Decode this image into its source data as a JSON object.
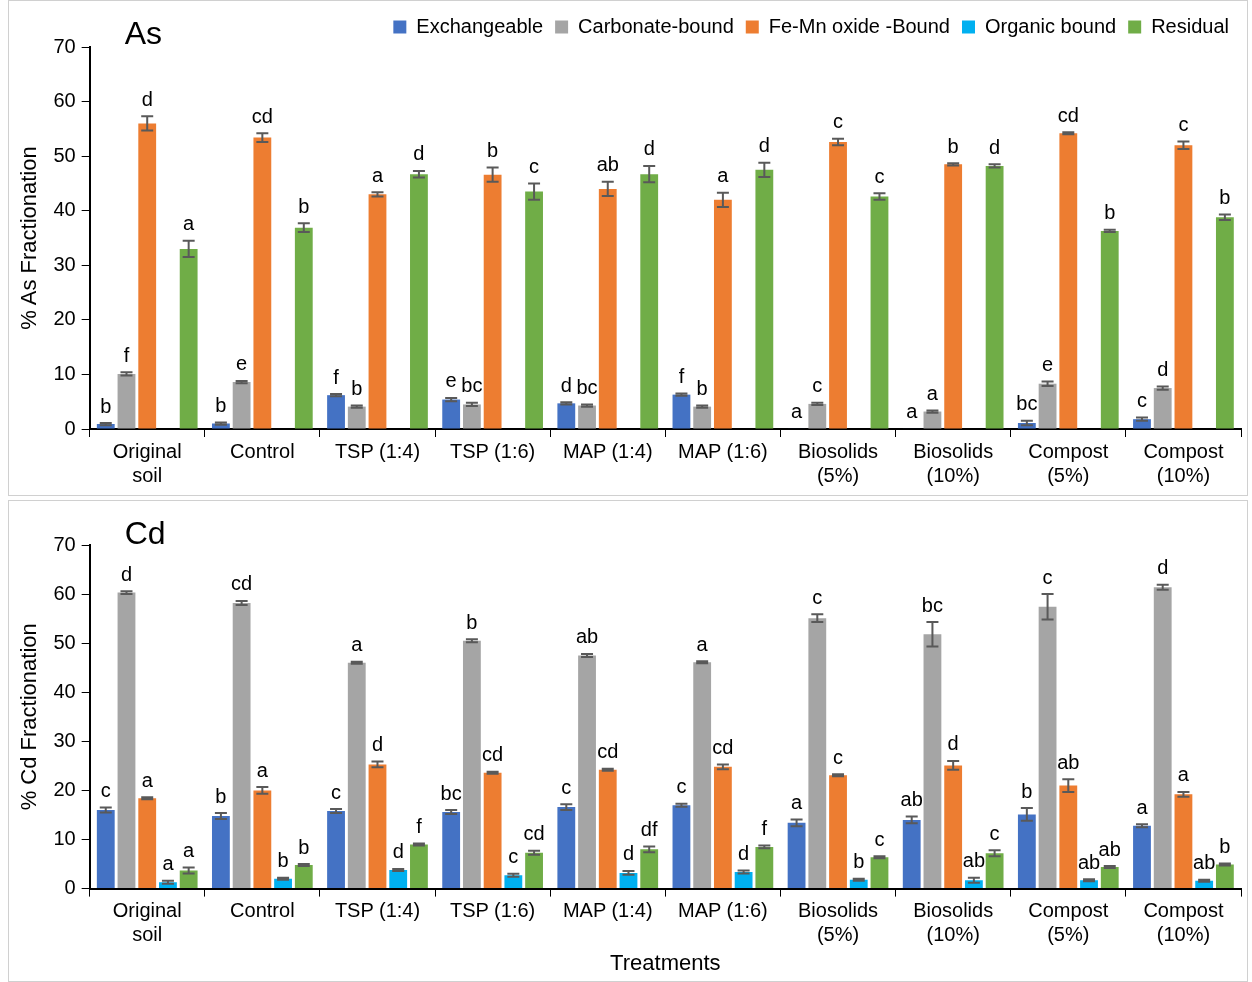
{
  "chart_data": [
    {
      "type": "bar",
      "title": "As",
      "ylabel": "% As Fractionation",
      "legend": "top",
      "ylim": [
        0,
        70
      ],
      "yticks": [
        0,
        10,
        20,
        30,
        40,
        50,
        60,
        70
      ],
      "categories": [
        "Original soil",
        "Control",
        "TSP (1:4)",
        "TSP (1:6)",
        "MAP (1:4)",
        "MAP (1:6)",
        "Biosolids (5%)",
        "Biosolids (10%)",
        "Compost (5%)",
        "Compost (10%)"
      ],
      "series": [
        {
          "name": "Exchangeable",
          "color": "#4472c4",
          "values": [
            0.9,
            1.0,
            6.2,
            5.4,
            4.7,
            6.3,
            0.1,
            0.1,
            1.1,
            1.8
          ],
          "errors": [
            0.2,
            0.2,
            0.2,
            0.3,
            0.2,
            0.2,
            null,
            null,
            0.4,
            0.3
          ],
          "value_labels": [
            "b",
            "b",
            "f",
            "e",
            "d",
            "f",
            "a",
            "a",
            "bc",
            "c"
          ]
        },
        {
          "name": "Carbonate-bound",
          "color": "#a5a5a5",
          "values": [
            10.1,
            8.6,
            4.1,
            4.5,
            4.3,
            4.1,
            4.6,
            3.2,
            8.3,
            7.5
          ],
          "errors": [
            0.3,
            0.2,
            0.2,
            0.3,
            0.2,
            0.2,
            0.2,
            0.2,
            0.4,
            0.3
          ],
          "value_labels": [
            "f",
            "e",
            "b",
            "bc",
            "bc",
            "b",
            "c",
            "a",
            "e",
            "d"
          ]
        },
        {
          "name": "Fe-Mn oxide -Bound",
          "color": "#ed7d31",
          "values": [
            56,
            53.4,
            43,
            46.6,
            44,
            42,
            52.6,
            48.5,
            54.2,
            52
          ],
          "errors": [
            1.3,
            0.8,
            0.4,
            1.3,
            1.3,
            1.3,
            0.6,
            0.2,
            0.2,
            0.7
          ],
          "value_labels": [
            "d",
            "cd",
            "a",
            "b",
            "ab",
            "a",
            "c",
            "b",
            "cd",
            "c"
          ]
        },
        {
          "name": "Organic bound",
          "color": "#00b0f0",
          "values": [
            null,
            null,
            null,
            null,
            null,
            null,
            null,
            null,
            null,
            null
          ]
        },
        {
          "name": "Residual",
          "color": "#70ad47",
          "values": [
            33,
            36.9,
            46.7,
            43.5,
            46.7,
            47.5,
            42.6,
            48.2,
            36.3,
            38.8
          ],
          "errors": [
            1.5,
            0.8,
            0.6,
            1.5,
            1.5,
            1.3,
            0.6,
            0.3,
            0.2,
            0.5
          ],
          "value_labels": [
            "a",
            "b",
            "d",
            "c",
            "d",
            "d",
            "c",
            "d",
            "b",
            "b"
          ]
        }
      ]
    },
    {
      "type": "bar",
      "title": "Cd",
      "ylabel": "% Cd Fractionation",
      "xlabel": "Treatments",
      "ylim": [
        0,
        70
      ],
      "yticks": [
        0,
        10,
        20,
        30,
        40,
        50,
        60,
        70
      ],
      "categories": [
        "Original soil",
        "Control",
        "TSP (1:4)",
        "TSP (1:6)",
        "MAP (1:4)",
        "MAP (1:6)",
        "Biosolids (5%)",
        "Biosolids (10%)",
        "Compost (5%)",
        "Compost (10%)"
      ],
      "series": [
        {
          "color": "#4472c4",
          "values": [
            16.0,
            14.8,
            15.8,
            15.6,
            16.6,
            17.0,
            13.4,
            14.0,
            15.1,
            12.8
          ],
          "errors": [
            0.5,
            0.6,
            0.4,
            0.4,
            0.6,
            0.3,
            0.7,
            0.7,
            1.3,
            0.3
          ],
          "value_labels": [
            "c",
            "b",
            "c",
            "bc",
            "c",
            "c",
            "a",
            "ab",
            "b",
            "a"
          ]
        },
        {
          "color": "#a5a5a5",
          "values": [
            60.3,
            58.2,
            46.0,
            50.5,
            47.5,
            46.1,
            55.1,
            51.8,
            57.4,
            61.4
          ],
          "errors": [
            0.3,
            0.4,
            0.2,
            0.3,
            0.3,
            0.2,
            0.8,
            2.5,
            2.6,
            0.5
          ],
          "value_labels": [
            "d",
            "cd",
            "a",
            "b",
            "ab",
            "a",
            "c",
            "bc",
            "c",
            "d"
          ]
        },
        {
          "color": "#ed7d31",
          "values": [
            18.4,
            20.0,
            25.3,
            23.6,
            24.2,
            24.8,
            23.1,
            25.1,
            21.0,
            19.2
          ],
          "errors": [
            0.2,
            0.7,
            0.6,
            0.2,
            0.2,
            0.5,
            0.2,
            0.9,
            1.3,
            0.5
          ],
          "value_labels": [
            "a",
            "a",
            "d",
            "cd",
            "cd",
            "cd",
            "c",
            "d",
            "ab",
            "a"
          ]
        },
        {
          "color": "#00b0f0",
          "values": [
            1.3,
            2.0,
            3.8,
            2.7,
            3.2,
            3.4,
            1.8,
            1.7,
            1.7,
            1.6
          ],
          "errors": [
            0.3,
            0.2,
            0.2,
            0.3,
            0.4,
            0.3,
            0.2,
            0.5,
            0.2,
            0.2
          ],
          "value_labels": [
            "a",
            "b",
            "d",
            "c",
            "d",
            "d",
            "b",
            "ab",
            "ab",
            "ab"
          ]
        },
        {
          "color": "#70ad47",
          "values": [
            3.7,
            4.8,
            9.0,
            7.3,
            8.0,
            8.5,
            6.4,
            7.2,
            4.4,
            4.9
          ],
          "errors": [
            0.6,
            0.2,
            0.2,
            0.4,
            0.6,
            0.3,
            0.2,
            0.6,
            0.2,
            0.2
          ],
          "value_labels": [
            "a",
            "b",
            "f",
            "cd",
            "df",
            "f",
            "c",
            "c",
            "ab",
            "b"
          ]
        }
      ]
    }
  ]
}
